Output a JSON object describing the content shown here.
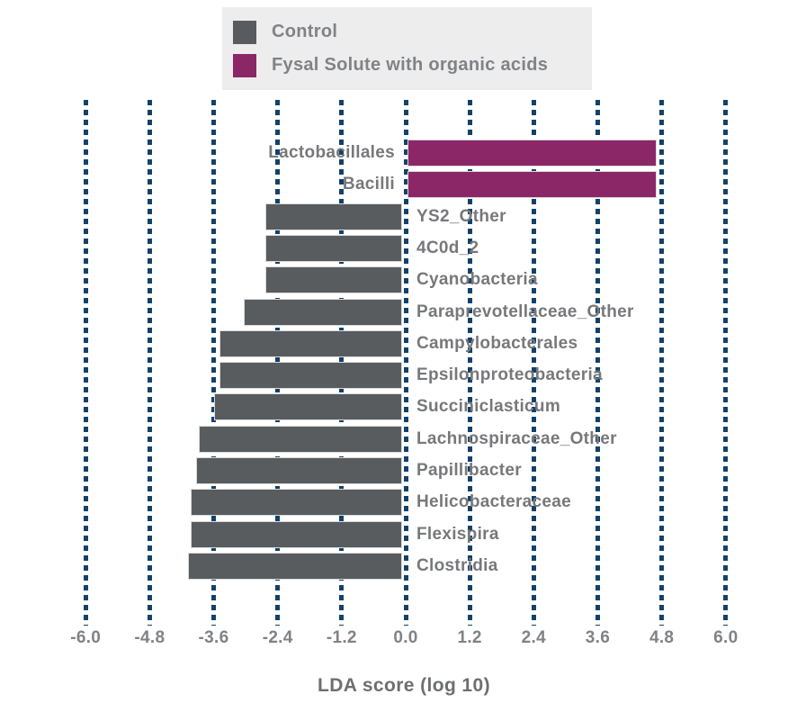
{
  "legend": {
    "items": [
      {
        "label": "Control",
        "color": "#595c5e"
      },
      {
        "label": "Fysal Solute with organic acids",
        "color": "#8b2766"
      }
    ],
    "background": "#ededee"
  },
  "axis": {
    "xlabel": "LDA score (log 10)",
    "tick_labels": [
      "-6.0",
      "-4.8",
      "-3.6",
      "-2.4",
      "-1.2",
      "0.0",
      "1.2",
      "2.4",
      "3.6",
      "4.8",
      "6.0"
    ]
  },
  "chart_data": {
    "type": "bar",
    "orientation": "horizontal",
    "xlabel": "LDA score (log 10)",
    "xlim": [
      -6.0,
      6.0
    ],
    "xticks": [
      -6.0,
      -4.8,
      -3.6,
      -2.4,
      -1.2,
      0.0,
      1.2,
      2.4,
      3.6,
      4.8,
      6.0
    ],
    "grid": "vertical dashed lines, on",
    "legend_position": "top",
    "colors": {
      "positive": "#8b2766",
      "negative": "#595c5e",
      "gridline": "#12426a"
    },
    "series": [
      {
        "name": "Fysal Solute with organic acids",
        "color": "#8b2766",
        "sign": "positive"
      },
      {
        "name": "Control",
        "color": "#595c5e",
        "sign": "negative"
      }
    ],
    "bars": [
      {
        "category": "Lactobacillales",
        "value": 4.7,
        "group": "Fysal Solute with organic acids"
      },
      {
        "category": "Bacilli",
        "value": 4.7,
        "group": "Fysal Solute with organic acids"
      },
      {
        "category": "YS2_Other",
        "value": -2.6,
        "group": "Control"
      },
      {
        "category": "4C0d_2",
        "value": -2.6,
        "group": "Control"
      },
      {
        "category": "Cyanobacteria",
        "value": -2.6,
        "group": "Control"
      },
      {
        "category": "Paraprevotellaceae_Other",
        "value": -3.0,
        "group": "Control"
      },
      {
        "category": "Campylobacterales",
        "value": -3.45,
        "group": "Control"
      },
      {
        "category": "Epsilonproteobacteria",
        "value": -3.45,
        "group": "Control"
      },
      {
        "category": "Succiniclasticum",
        "value": -3.55,
        "group": "Control"
      },
      {
        "category": "Lachnospiraceae_Other",
        "value": -3.85,
        "group": "Control"
      },
      {
        "category": "Papillibacter",
        "value": -3.9,
        "group": "Control"
      },
      {
        "category": "Helicobacteraceae",
        "value": -4.0,
        "group": "Control"
      },
      {
        "category": "Flexispira",
        "value": -4.0,
        "group": "Control"
      },
      {
        "category": "Clostridia",
        "value": -4.05,
        "group": "Control"
      }
    ]
  }
}
